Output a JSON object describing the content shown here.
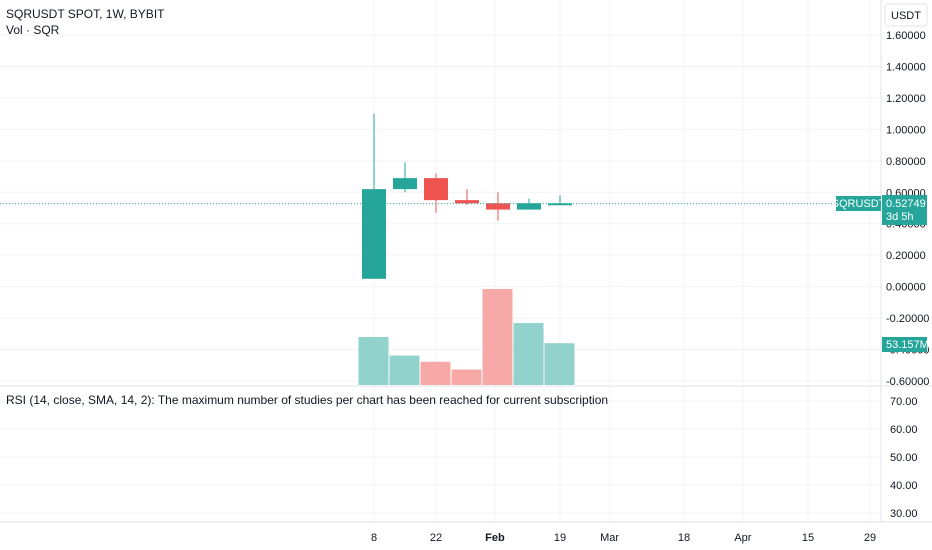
{
  "header": {
    "symbol_line": "SQRUSDT SPOT, 1W, BYBIT",
    "volume_line": "Vol · SQR"
  },
  "currency_button": "USDT",
  "rsi_line": "RSI (14, close, SMA, 14, 2): The maximum number of studies per chart has been reached for current subscription",
  "colors": {
    "up": "#26a69a",
    "down": "#ef5350",
    "vol_up": "#92d2cc",
    "vol_down": "#f7a9a7",
    "grid": "#f0f3fa",
    "last_line": "#26a69a"
  },
  "chart_data": [
    {
      "type": "candlestick",
      "price_axis_labels": [
        "1.60000",
        "1.40000",
        "1.20000",
        "1.00000",
        "0.80000",
        "0.60000",
        "0.40000",
        "0.20000",
        "0.00000",
        "-0.20000",
        "-0.40000",
        "-0.60000"
      ],
      "ylim": [
        -0.6,
        1.6
      ],
      "last_price": {
        "symbol": "SQRUSDT",
        "value": "0.52749",
        "countdown": "3d 5h",
        "y": 0.52749
      },
      "time_axis_labels": [
        {
          "label": "8",
          "week": 0
        },
        {
          "label": "22",
          "week": 2
        },
        {
          "label": "Feb",
          "week": 3.9
        },
        {
          "label": "19",
          "week": 6
        },
        {
          "label": "Mar",
          "week": 7.6
        },
        {
          "label": "18",
          "week": 10
        },
        {
          "label": "Apr",
          "week": 11.9
        },
        {
          "label": "15",
          "week": 14
        },
        {
          "label": "29",
          "week": 16
        }
      ],
      "candles": [
        {
          "week": 0,
          "open": 0.05,
          "high": 1.1,
          "low": 0.05,
          "close": 0.62
        },
        {
          "week": 1,
          "open": 0.62,
          "high": 0.79,
          "low": 0.6,
          "close": 0.69
        },
        {
          "week": 2,
          "open": 0.69,
          "high": 0.72,
          "low": 0.47,
          "close": 0.55
        },
        {
          "week": 3,
          "open": 0.55,
          "high": 0.62,
          "low": 0.52,
          "close": 0.53
        },
        {
          "week": 4,
          "open": 0.53,
          "high": 0.6,
          "low": 0.42,
          "close": 0.49
        },
        {
          "week": 5,
          "open": 0.49,
          "high": 0.56,
          "low": 0.49,
          "close": 0.53
        },
        {
          "week": 6,
          "open": 0.52,
          "high": 0.58,
          "low": 0.52,
          "close": 0.53
        }
      ],
      "volume": {
        "last_label": "53.157M",
        "bars": [
          {
            "week": 0,
            "value": 31,
            "dir": "up"
          },
          {
            "week": 1,
            "value": 19,
            "dir": "up"
          },
          {
            "week": 2,
            "value": 15,
            "dir": "down"
          },
          {
            "week": 3,
            "value": 10,
            "dir": "down"
          },
          {
            "week": 4,
            "value": 62,
            "dir": "down"
          },
          {
            "week": 5,
            "value": 40,
            "dir": "up"
          },
          {
            "week": 6,
            "value": 27,
            "dir": "up"
          }
        ],
        "max": 62
      }
    },
    {
      "type": "line",
      "name": "RSI",
      "axis_labels": [
        "70.00",
        "60.00",
        "50.00",
        "40.00",
        "30.00"
      ],
      "ylim": [
        30,
        70
      ]
    }
  ]
}
